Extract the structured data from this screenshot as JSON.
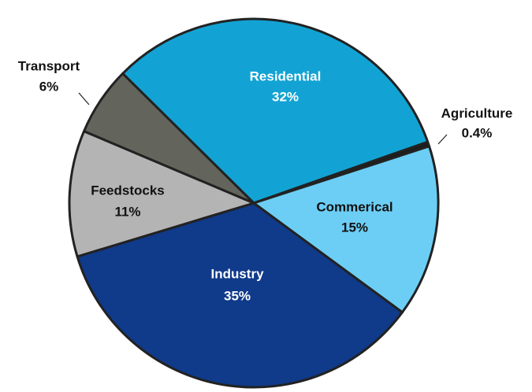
{
  "chart_data": {
    "type": "pie",
    "categories": [
      "Residential",
      "Agriculture",
      "Commerical",
      "Industry",
      "Feedstocks",
      "Transport"
    ],
    "values": [
      32,
      0.4,
      15,
      35,
      11,
      6
    ],
    "value_labels": [
      "32%",
      "0.4%",
      "15%",
      "35%",
      "11%",
      "6%"
    ],
    "colors": [
      "#12a3d4",
      "#1c1c1c",
      "#6dcef5",
      "#103a8a",
      "#b4b4b4",
      "#63655c"
    ]
  }
}
